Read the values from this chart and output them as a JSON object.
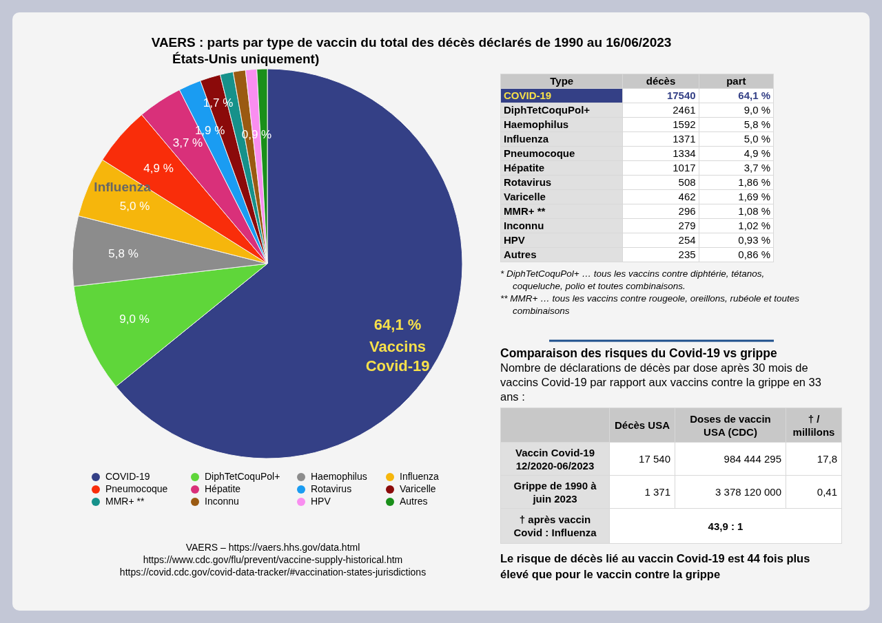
{
  "chart_data": [
    {
      "type": "pie",
      "title": "VAERS : parts par type de vaccin du total des décès déclarés de 1990 au 16/06/2023",
      "subtitle": "États-Unis uniquement)",
      "categories": [
        "COVID-19",
        "DiphTetCoquPol+",
        "Haemophilus",
        "Influenza",
        "Pneumocoque",
        "Hépatite",
        "Rotavirus",
        "Varicelle",
        "MMR+ **",
        "Inconnu",
        "HPV",
        "Autres"
      ],
      "values": [
        64.1,
        9.0,
        5.8,
        5.0,
        4.9,
        3.7,
        1.86,
        1.69,
        1.08,
        1.02,
        0.93,
        0.86
      ],
      "colors": [
        "#344086",
        "#5fd63a",
        "#8c8c8c",
        "#f6b60c",
        "#f92d0a",
        "#d9307a",
        "#1a9cf2",
        "#8b0a0a",
        "#16918a",
        "#9a5a12",
        "#f98ef0",
        "#1a8f1a"
      ],
      "value_labels": [
        "64,1 %",
        "9,0 %",
        "5,8 %",
        "5,0 %",
        "4,9 %",
        "3,7 %",
        "1,9 %",
        "1,7 %",
        null,
        null,
        "0,9 %",
        null
      ],
      "legend": "bottom",
      "annotations": [
        {
          "text": "Vaccins Covid-19",
          "x": "COVID-19"
        },
        {
          "text": "Influenza",
          "x": "Influenza"
        },
        "VAERS – https://vaers.hhs.gov/data.html",
        "https://www.cdc.gov/flu/prevent/vaccine-supply-historical.htm",
        "https://covid.cdc.gov/covid-data-tracker/#vaccination-states-jurisdictions"
      ]
    },
    {
      "type": "other",
      "categories": [
        "COVID-19",
        "DiphTetCoquPol+",
        "Haemophilus",
        "Influenza",
        "Pneumocoque",
        "Hépatite",
        "Rotavirus",
        "Varicelle",
        "MMR+ **",
        "Inconnu",
        "HPV",
        "Autres"
      ],
      "data_labels": true,
      "values": [
        17540,
        2461,
        1592,
        1371,
        1334,
        1017,
        508,
        462,
        296,
        279,
        254,
        235
      ],
      "annotations": [
        "Type",
        "décès",
        "part",
        "64,1 %",
        "9,0 %",
        "5,8 %",
        "5,0 %",
        "4,9 %",
        "3,7 %",
        "1,86 %",
        "1,69 %",
        "1,08 %",
        "1,02 %",
        "0,93 %",
        "0,86 %",
        "*   DiphTetCoquPol+ … tous les vaccins contre diphtérie, tétanos, coqueluche, polio et toutes combinaisons.",
        "**  MMR+ … tous les vaccins contre rougeole, oreillons, rubéole et toutes combinaisons"
      ]
    },
    {
      "type": "other",
      "title": "Comparaison des risques du Covid-19 vs grippe",
      "subtitle": "Nombre de déclarations de décès par dose après 30 mois de vaccins Covid-19 par rapport aux vaccins contre la grippe en 33 ans :",
      "annotations": [
        "Décès USA",
        "Doses de vaccin USA (CDC)",
        "† / millilons",
        "Vaccin Covid-19 12/2020-06/2023",
        "17 540",
        "984 444 295",
        "17,8",
        "Grippe de 1990 à juin 2023",
        "1 371",
        "3 378 120 000",
        "0,41",
        "† après vaccin Covid : Influenza",
        "43,9 : 1",
        "Le risque de décès lié au vaccin Covid-19 est 44 fois plus élevé que pour le vaccin contre la grippe"
      ]
    }
  ]
}
